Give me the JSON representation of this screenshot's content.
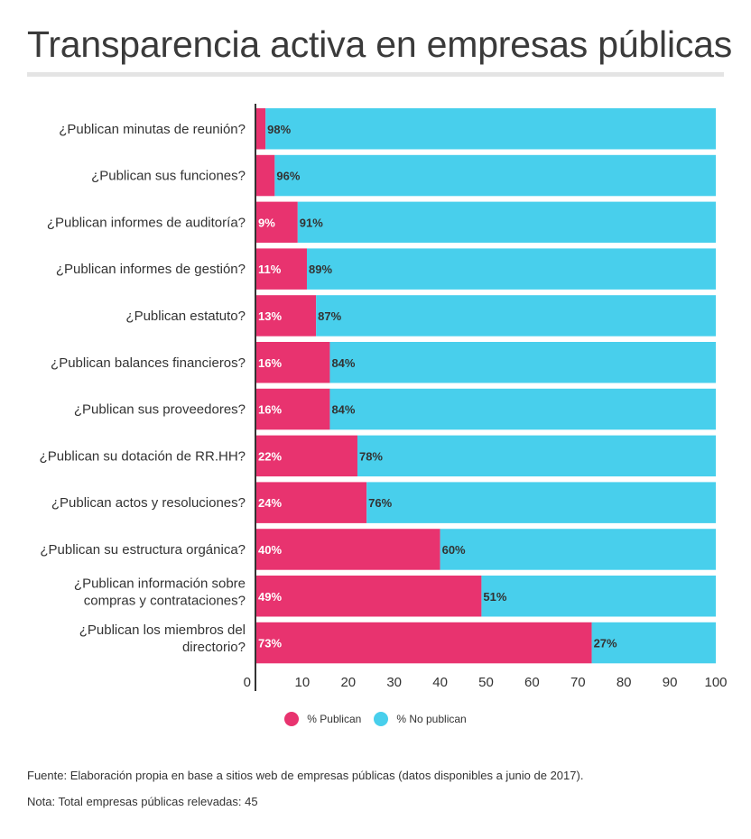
{
  "title": "Transparencia activa en empresas públicas",
  "colors": {
    "publican": "#e8336f",
    "no_publican": "#48cfec",
    "axis": "#333333"
  },
  "chart_data": {
    "type": "bar",
    "orientation": "horizontal",
    "stacked": true,
    "categories": [
      [
        "¿Publican minutas de reunión?"
      ],
      [
        "¿Publican sus funciones?"
      ],
      [
        "¿Publican informes de auditoría?"
      ],
      [
        "¿Publican informes de gestión?"
      ],
      [
        "¿Publican estatuto?"
      ],
      [
        "¿Publican balances financieros?"
      ],
      [
        "¿Publican sus proveedores?"
      ],
      [
        "¿Publican su dotación de RR.HH?"
      ],
      [
        "¿Publican actos y resoluciones?"
      ],
      [
        "¿Publican su estructura orgánica?"
      ],
      [
        "¿Publican información sobre",
        "compras y contrataciones?"
      ],
      [
        "¿Publican los miembros del",
        "directorio?"
      ]
    ],
    "series": [
      {
        "name": "% Publican",
        "values": [
          2,
          4,
          9,
          11,
          13,
          16,
          16,
          22,
          24,
          40,
          49,
          73
        ],
        "labels": [
          "",
          "",
          "9%",
          "11%",
          "13%",
          "16%",
          "16%",
          "22%",
          "24%",
          "40%",
          "49%",
          "73%"
        ]
      },
      {
        "name": "% No publican",
        "values": [
          98,
          96,
          91,
          89,
          87,
          84,
          84,
          78,
          76,
          60,
          51,
          27
        ],
        "labels": [
          "98%",
          "96%",
          "91%",
          "89%",
          "87%",
          "84%",
          "84%",
          "78%",
          "76%",
          "60%",
          "51%",
          "27%"
        ]
      }
    ],
    "xlim": [
      0,
      100
    ],
    "xticks": [
      0,
      10,
      20,
      30,
      40,
      50,
      60,
      70,
      80,
      90,
      100
    ],
    "legend_position": "bottom"
  },
  "footnotes": {
    "source": "Fuente: Elaboración propia en base a sitios web de empresas públicas (datos disponibles a junio de 2017).",
    "note": "Nota: Total empresas públicas relevadas: 45"
  }
}
